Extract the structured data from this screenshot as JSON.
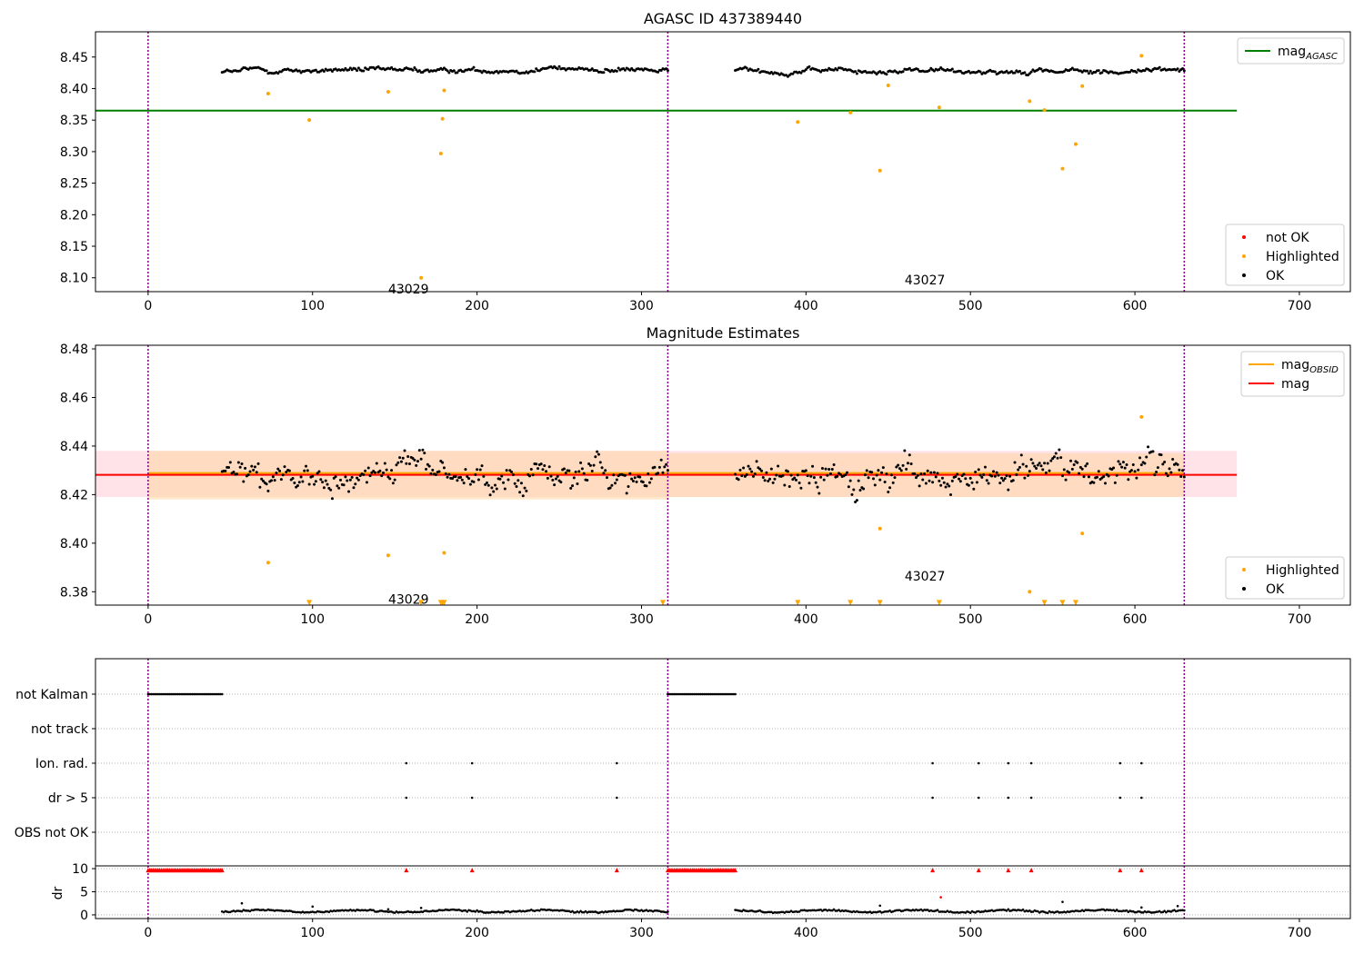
{
  "chart_data": [
    {
      "type": "scatter",
      "title": "AGASC ID 437389440",
      "xlim": [
        -32,
        731
      ],
      "ylim": [
        8.078,
        8.49
      ],
      "xticks": [
        0,
        100,
        200,
        300,
        400,
        500,
        600,
        700
      ],
      "xtick_labels": [
        "0",
        "100",
        "200",
        "300",
        "400",
        "500",
        "600",
        "700"
      ],
      "yticks": [
        8.1,
        8.15,
        8.2,
        8.25,
        8.3,
        8.35,
        8.4,
        8.45
      ],
      "ytick_labels": [
        "8.10",
        "8.15",
        "8.20",
        "8.25",
        "8.30",
        "8.35",
        "8.40",
        "8.45"
      ],
      "obs_boundaries": [
        0,
        316,
        630
      ],
      "obs_labels": [
        {
          "x": 146,
          "y": 8.082,
          "text": "43029"
        },
        {
          "x": 460,
          "y": 8.097,
          "text": "43027"
        }
      ],
      "lines": [
        {
          "name": "mag_AGASC",
          "y": 8.365,
          "x": [
            -32,
            662
          ],
          "color": "#008000"
        }
      ],
      "ok_series": {
        "name": "OK",
        "color": "#000000",
        "segments": [
          {
            "x_start": 45,
            "x_end": 316,
            "base": 8.428,
            "amp": 0.006,
            "noise": 0.004
          },
          {
            "x_start": 357,
            "x_end": 630,
            "base": 8.428,
            "amp": 0.006,
            "noise": 0.004
          }
        ]
      },
      "highlighted": {
        "name": "Highlighted",
        "color": "#ffa500",
        "points": [
          [
            73,
            8.392
          ],
          [
            98,
            8.35
          ],
          [
            146,
            8.395
          ],
          [
            166,
            8.1
          ],
          [
            178,
            8.297
          ],
          [
            179,
            8.352
          ],
          [
            180,
            8.397
          ],
          [
            395,
            8.347
          ],
          [
            427,
            8.362
          ],
          [
            445,
            8.27
          ],
          [
            450,
            8.405
          ],
          [
            481,
            8.37
          ],
          [
            536,
            8.38
          ],
          [
            545,
            8.366
          ],
          [
            556,
            8.273
          ],
          [
            564,
            8.312
          ],
          [
            568,
            8.404
          ],
          [
            604,
            8.452
          ]
        ]
      },
      "legend_top": {
        "position": "upper right",
        "entries": [
          {
            "label": "mag",
            "subscript": "AGASC",
            "color": "#008000",
            "kind": "line"
          }
        ]
      },
      "legend_bottom": {
        "position": "lower right",
        "entries": [
          {
            "label": "not OK",
            "color": "#ff0000",
            "kind": "dot"
          },
          {
            "label": "Highlighted",
            "color": "#ffa500",
            "kind": "dot"
          },
          {
            "label": "OK",
            "color": "#000000",
            "kind": "dot"
          }
        ]
      }
    },
    {
      "type": "scatter",
      "title": "Magnitude Estimates",
      "xlim": [
        -32,
        731
      ],
      "ylim": [
        8.3745,
        8.4815
      ],
      "xticks": [
        0,
        100,
        200,
        300,
        400,
        500,
        600,
        700
      ],
      "xtick_labels": [
        "0",
        "100",
        "200",
        "300",
        "400",
        "500",
        "600",
        "700"
      ],
      "yticks": [
        8.38,
        8.4,
        8.42,
        8.44,
        8.46,
        8.48
      ],
      "ytick_labels": [
        "8.38",
        "8.40",
        "8.42",
        "8.44",
        "8.46",
        "8.48"
      ],
      "obs_boundaries": [
        0,
        316,
        630
      ],
      "obs_labels": [
        {
          "x": 146,
          "y": 8.377,
          "text": "43029"
        },
        {
          "x": 460,
          "y": 8.3865,
          "text": "43027"
        }
      ],
      "bands": [
        {
          "x": [
            -32,
            662
          ],
          "y": [
            8.419,
            8.438
          ],
          "color": "#ffc0cb",
          "opacity": 0.45
        },
        {
          "x": [
            0,
            316
          ],
          "y": [
            8.418,
            8.438
          ],
          "color": "#ffd6a0",
          "opacity": 0.55
        },
        {
          "x": [
            316,
            630
          ],
          "y": [
            8.419,
            8.437
          ],
          "color": "#ffd6a0",
          "opacity": 0.55
        }
      ],
      "lines": [
        {
          "name": "mag_OBSID",
          "y": 8.4285,
          "x": [
            0,
            630
          ],
          "color": "#ffa500"
        },
        {
          "name": "mag",
          "y": 8.4285,
          "x": [
            -32,
            662
          ],
          "color": "#ff0000"
        }
      ],
      "ok_series": {
        "name": "OK",
        "color": "#000000",
        "segments": [
          {
            "x_start": 45,
            "x_end": 316,
            "base": 8.428,
            "amp": 0.008,
            "noise": 0.007
          },
          {
            "x_start": 357,
            "x_end": 630,
            "base": 8.428,
            "amp": 0.008,
            "noise": 0.007
          }
        ]
      },
      "highlighted": {
        "name": "Highlighted",
        "color": "#ffa500",
        "points": [
          [
            73,
            8.392
          ],
          [
            146,
            8.395
          ],
          [
            180,
            8.396
          ],
          [
            445,
            8.406
          ],
          [
            536,
            8.38
          ],
          [
            568,
            8.404
          ],
          [
            604,
            8.452
          ]
        ]
      },
      "clipped_markers": {
        "color": "#ffa500",
        "y": 8.3755,
        "x": [
          98,
          166,
          178,
          179,
          180,
          313,
          395,
          427,
          445,
          481,
          545,
          556,
          564
        ]
      },
      "legend_top": {
        "position": "upper right",
        "entries": [
          {
            "label": "mag",
            "subscript": "OBSID",
            "color": "#ffa500",
            "kind": "line"
          },
          {
            "label": "mag",
            "subscript": "",
            "color": "#ff0000",
            "kind": "line"
          }
        ]
      },
      "legend_bottom": {
        "position": "lower right",
        "entries": [
          {
            "label": "Highlighted",
            "color": "#ffa500",
            "kind": "dot"
          },
          {
            "label": "OK",
            "color": "#000000",
            "kind": "dot"
          }
        ]
      }
    },
    {
      "type": "scatter",
      "title": "",
      "xlim": [
        -32,
        731
      ],
      "categories": [
        "not Kalman",
        "not track",
        "Ion. rad.",
        "dr > 5",
        "OBS not OK"
      ],
      "flags": {
        "not Kalman": {
          "ranges": [
            [
              0,
              45
            ],
            [
              316,
              357
            ]
          ]
        },
        "not track": {
          "ranges": []
        },
        "Ion. rad.": {
          "x": [
            157,
            197,
            285,
            477,
            505,
            523,
            537,
            591,
            604
          ]
        },
        "dr > 5": {
          "x": [
            157,
            197,
            285,
            477,
            505,
            523,
            537,
            591,
            604
          ]
        },
        "OBS not OK": {
          "x": []
        }
      },
      "obs_boundaries": [
        0,
        316,
        630
      ]
    },
    {
      "type": "scatter",
      "title": "",
      "ylabel": "dr",
      "xlim": [
        -32,
        731
      ],
      "ylim": [
        -0.8,
        10.6
      ],
      "xticks": [
        0,
        100,
        200,
        300,
        400,
        500,
        600,
        700
      ],
      "xtick_labels": [
        "0",
        "100",
        "200",
        "300",
        "400",
        "500",
        "600",
        "700"
      ],
      "yticks": [
        0,
        5,
        10
      ],
      "ytick_labels": [
        "0",
        "5",
        "10"
      ],
      "obs_boundaries": [
        0,
        316,
        630
      ],
      "clipped_red": {
        "color": "#ff0000",
        "y": 9.7,
        "ranges": [
          [
            0,
            45
          ],
          [
            316,
            357
          ]
        ],
        "x": [
          157,
          197,
          285,
          477,
          505,
          523,
          537,
          591,
          604
        ]
      },
      "red_points": [
        [
          482,
          3.8
        ]
      ],
      "ok_series": {
        "color": "#000000",
        "segments": [
          {
            "x_start": 45,
            "x_end": 316,
            "base": 0.8,
            "amp": 0.4
          },
          {
            "x_start": 357,
            "x_end": 630,
            "base": 0.8,
            "amp": 0.4
          }
        ]
      },
      "extra_points": [
        [
          57,
          2.5
        ],
        [
          100,
          1.8
        ],
        [
          146,
          1.2
        ],
        [
          166,
          1.5
        ],
        [
          445,
          2.0
        ],
        [
          556,
          2.8
        ],
        [
          604,
          1.6
        ],
        [
          626,
          1.9
        ]
      ]
    }
  ]
}
